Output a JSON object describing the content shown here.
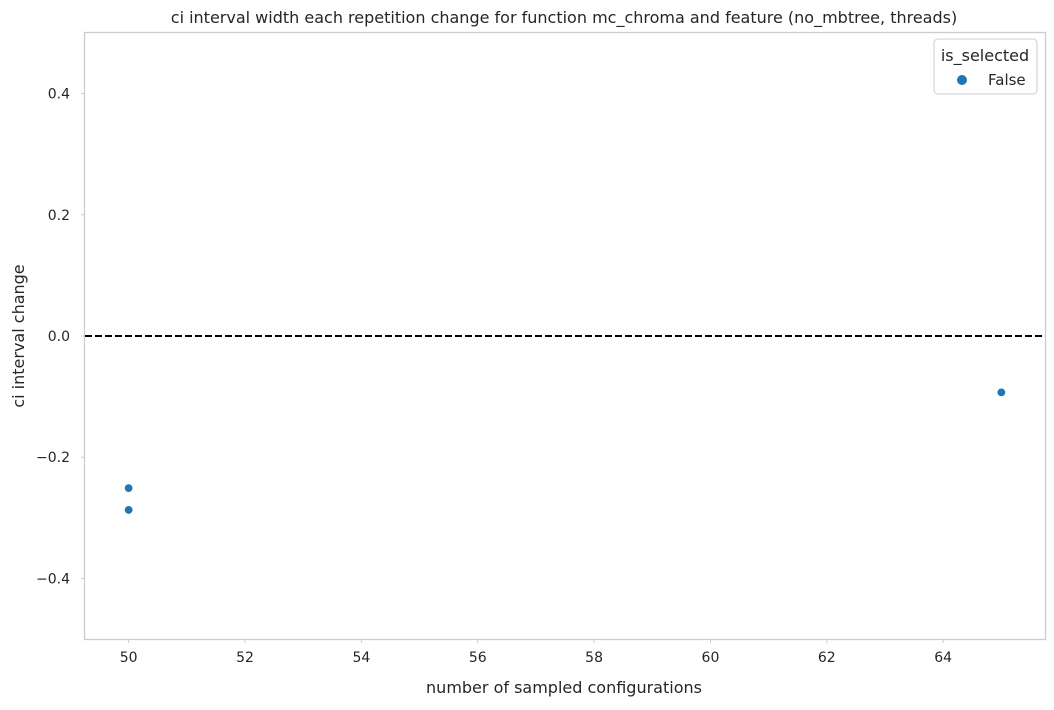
{
  "chart_data": {
    "type": "scatter",
    "title": "ci interval width each repetition change for function mc_chroma and feature (no_mbtree, threads)",
    "xlabel": "number of sampled configurations",
    "ylabel": "ci interval change",
    "xlim": [
      49.25,
      65.75
    ],
    "ylim": [
      -0.5,
      0.5
    ],
    "xticks": [
      50,
      52,
      54,
      56,
      58,
      60,
      62,
      64
    ],
    "yticks": [
      -0.4,
      -0.2,
      0.0,
      0.2,
      0.4
    ],
    "ytick_labels": [
      "−0.4",
      "−0.2",
      "0.0",
      "0.2",
      "0.4"
    ],
    "grid": false,
    "reference_line": {
      "y": 0.0,
      "style": "dashed",
      "color": "#000000"
    },
    "legend": {
      "title": "is_selected",
      "placement": "top-right",
      "entries": [
        {
          "label": "False",
          "color": "#1f77b4"
        }
      ]
    },
    "series": [
      {
        "name": "False",
        "color": "#1f77b4",
        "points": [
          {
            "x": 50,
            "y": -0.251
          },
          {
            "x": 50,
            "y": -0.287
          },
          {
            "x": 65,
            "y": -0.093
          }
        ]
      }
    ]
  }
}
